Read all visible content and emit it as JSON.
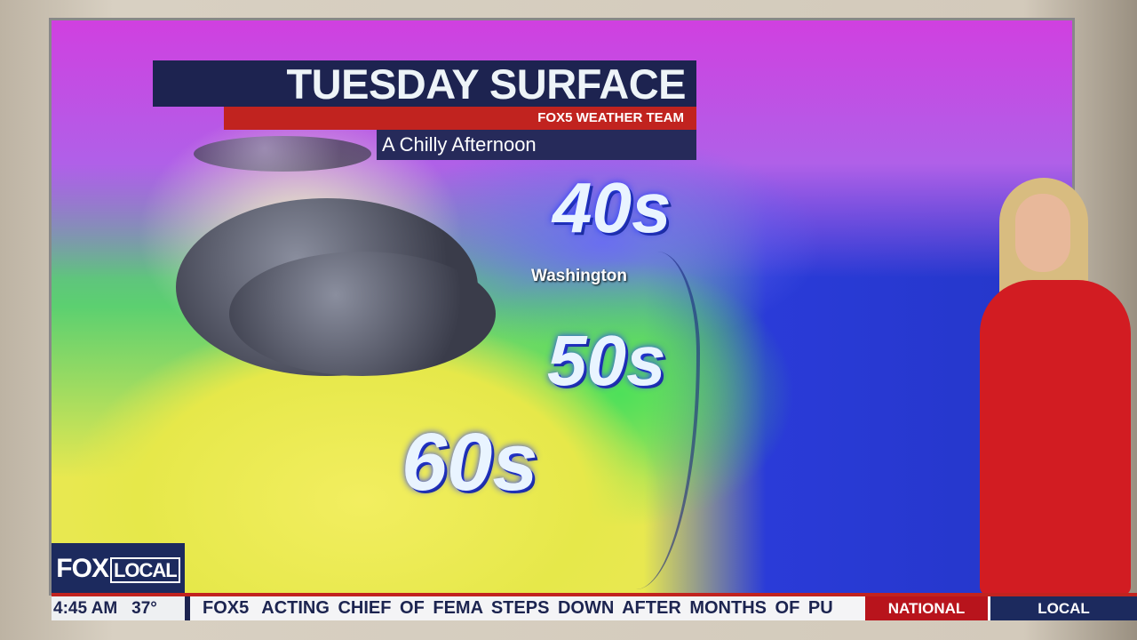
{
  "graphic": {
    "title": "TUESDAY SURFACE",
    "team": "FOX5 WEATHER TEAM",
    "subtitle": "A Chilly Afternoon"
  },
  "map": {
    "city": "Washington",
    "temps": [
      "40s",
      "50s",
      "60s"
    ]
  },
  "bug": {
    "logo_fox": "FOX",
    "logo_local": "LOCAL"
  },
  "ticker": {
    "time": "4:45 AM",
    "temperature": "37°",
    "station": "FOX5",
    "headline": "ACTING CHIEF OF FEMA STEPS DOWN AFTER MONTHS OF PU",
    "tabs": [
      "NATIONAL",
      "LOCAL"
    ]
  },
  "colors": {
    "navy": "#1c2450",
    "red": "#c1231f"
  }
}
